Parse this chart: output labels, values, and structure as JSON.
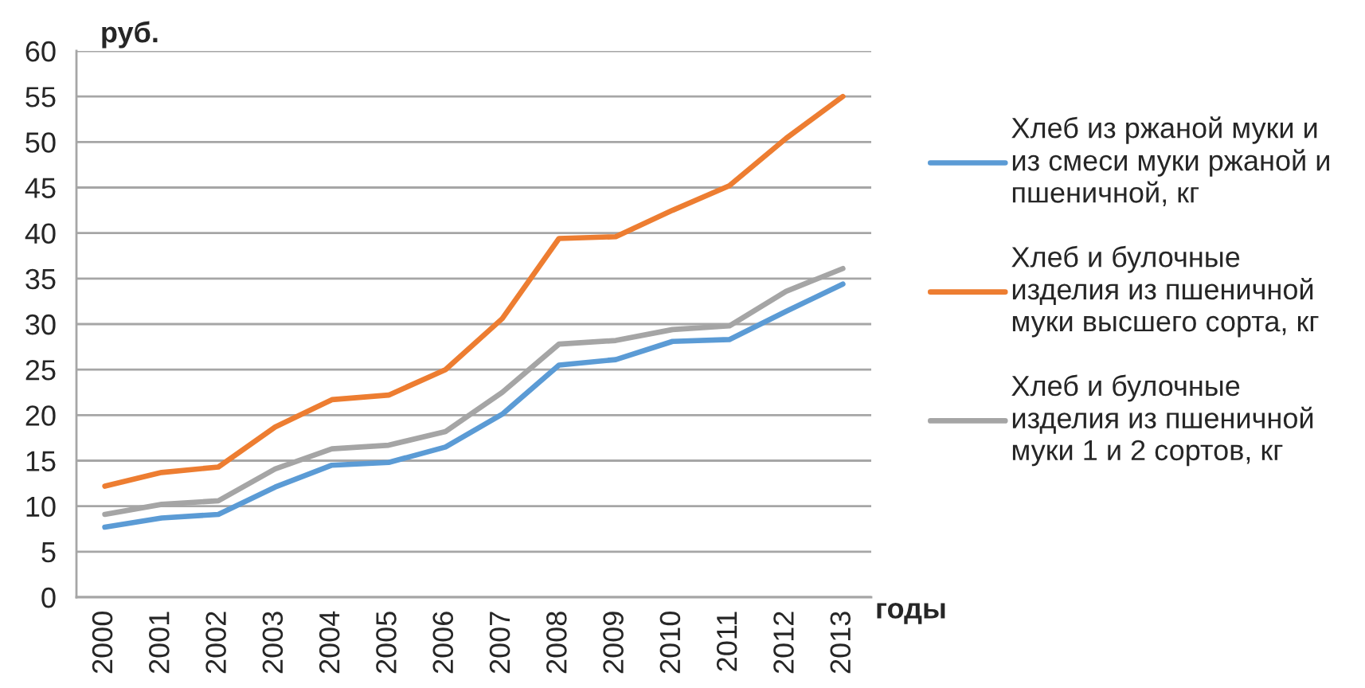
{
  "chart_data": {
    "type": "line",
    "xlabel": "годы",
    "ylabel": "руб.",
    "categories": [
      "2000",
      "2001",
      "2002",
      "2003",
      "2004",
      "2005",
      "2006",
      "2007",
      "2008",
      "2009",
      "2010",
      "2011",
      "2012",
      "2013"
    ],
    "series": [
      {
        "name": "Хлеб из ржаной муки и из смеси муки ржаной и пшеничной, кг",
        "color": "#5b9bd5",
        "values": [
          7.7,
          8.7,
          9.1,
          12.1,
          14.5,
          14.8,
          16.5,
          20.1,
          25.5,
          26.1,
          28.1,
          28.3,
          31.4,
          34.4
        ]
      },
      {
        "name": "Хлеб и булочные изделия из пшеничной муки высшего сорта, кг",
        "color": "#ed7d31",
        "values": [
          12.2,
          13.7,
          14.3,
          18.7,
          21.7,
          22.2,
          25.0,
          30.6,
          39.4,
          39.6,
          42.5,
          45.2,
          50.4,
          55.0
        ]
      },
      {
        "name": "Хлеб и булочные изделия из пшеничной муки 1 и 2 сортов, кг",
        "color": "#a5a5a5",
        "values": [
          9.1,
          10.2,
          10.6,
          14.1,
          16.3,
          16.7,
          18.2,
          22.5,
          27.8,
          28.2,
          29.4,
          29.8,
          33.6,
          36.1
        ]
      }
    ],
    "ylim": [
      0,
      60
    ],
    "yticks": [
      0,
      5,
      10,
      15,
      20,
      25,
      30,
      35,
      40,
      45,
      50,
      55,
      60
    ],
    "grid": "y",
    "legend": "right"
  }
}
